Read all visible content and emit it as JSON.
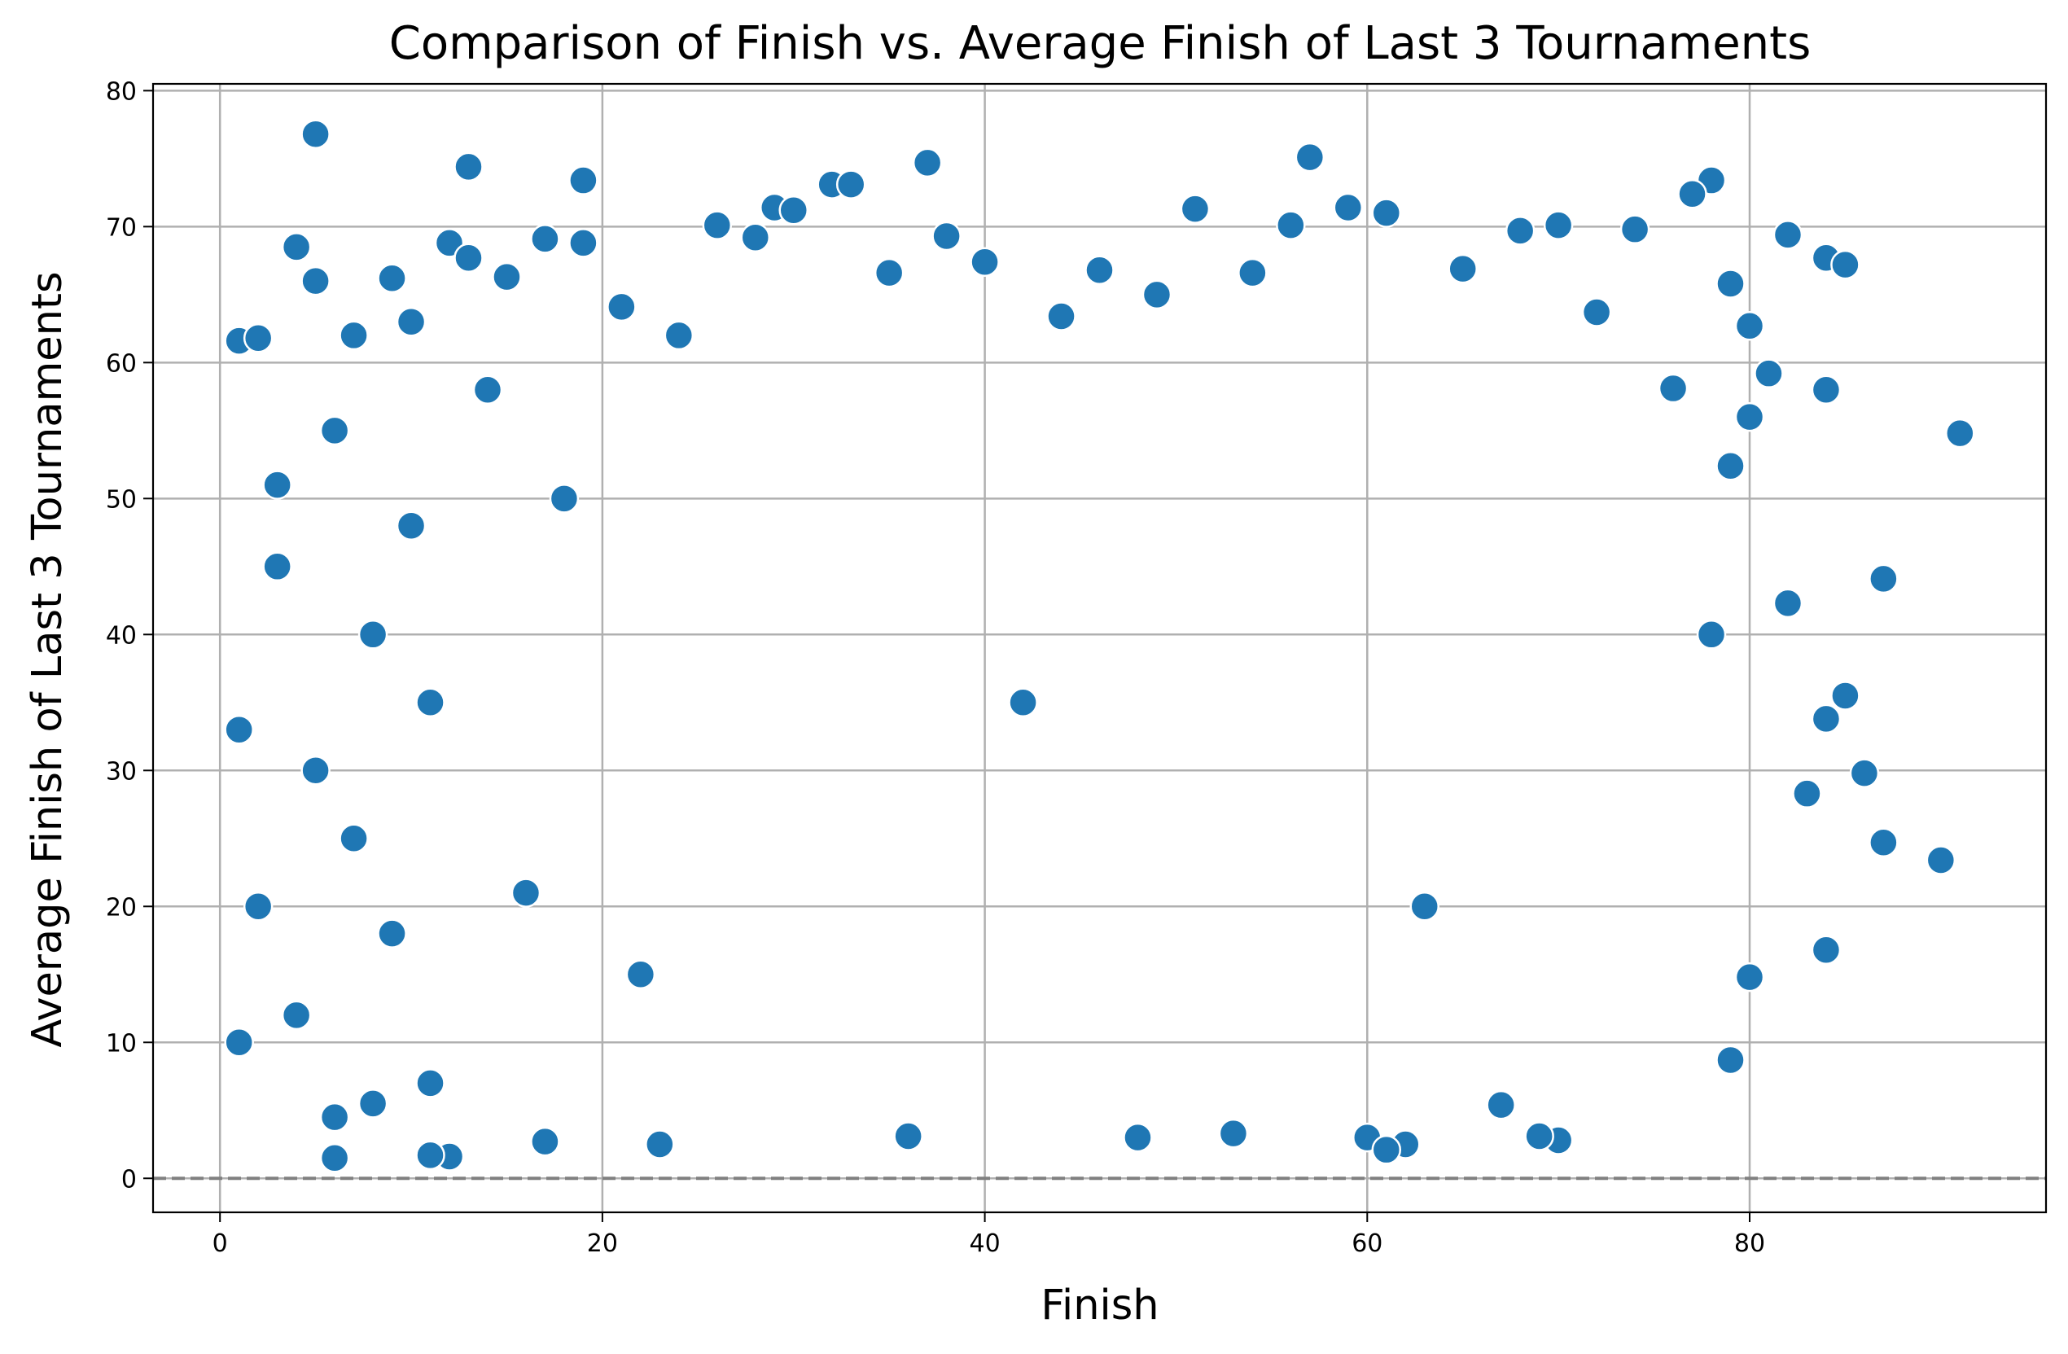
{
  "chart_data": {
    "type": "scatter",
    "title": "Comparison of Finish vs. Average Finish of Last 3 Tournaments",
    "xlabel": "Finish",
    "ylabel": "Average Finish of Last 3 Tournaments",
    "xlim": [
      -3.5,
      95.5
    ],
    "ylim": [
      -2.5,
      80.5
    ],
    "xticks": [
      0,
      20,
      40,
      60,
      80
    ],
    "yticks": [
      0,
      10,
      20,
      30,
      40,
      50,
      60,
      70,
      80
    ],
    "grid": true,
    "reference_line": {
      "y": 0,
      "style": "dashed",
      "color": "#808080"
    },
    "point_color": "#1f77b4",
    "point_edge_color": "#ffffff",
    "series": [
      {
        "x": [
          5,
          13,
          19,
          37,
          57,
          32,
          29,
          78,
          77,
          91,
          90,
          87,
          87,
          86,
          84,
          84,
          85,
          82,
          82,
          79,
          79,
          80,
          83,
          84,
          62,
          60,
          61,
          70,
          69,
          67,
          12,
          6,
          11,
          23,
          17,
          36,
          48,
          53,
          1,
          1,
          1,
          2,
          2,
          3,
          3,
          4,
          4,
          5,
          5,
          6,
          6,
          7,
          7,
          8,
          8,
          9,
          9,
          10,
          10,
          11,
          11,
          12,
          13,
          14,
          15,
          16,
          17,
          18,
          19,
          21,
          22,
          24,
          26,
          28,
          30,
          33,
          35,
          38,
          40,
          42,
          44,
          46,
          49,
          51,
          54,
          56,
          59,
          61,
          63,
          65,
          68,
          70,
          72,
          74,
          76,
          78,
          80,
          81,
          85,
          84,
          79,
          80
        ],
        "y": [
          76.8,
          74.4,
          73.4,
          74.7,
          75.1,
          73.1,
          71.4,
          73.4,
          72.4,
          54.8,
          23.4,
          44.1,
          24.7,
          29.8,
          16.8,
          67.7,
          67.2,
          69.4,
          42.3,
          8.7,
          65.8,
          14.8,
          28.3,
          33.8,
          2.5,
          3,
          2.1,
          2.8,
          3.1,
          5.4,
          1.6,
          1.5,
          1.7,
          2.5,
          2.7,
          3.1,
          3,
          3.3,
          61.6,
          10,
          33,
          61.8,
          20,
          45,
          51,
          12,
          68.5,
          66,
          30,
          55,
          4.5,
          62,
          25,
          40,
          5.5,
          66.2,
          18,
          63,
          48,
          35,
          7,
          68.8,
          67.7,
          58,
          66.3,
          21,
          69.1,
          50,
          68.8,
          64.1,
          15,
          62,
          70.1,
          69.2,
          71.2,
          73.1,
          66.6,
          69.3,
          67.4,
          35,
          63.4,
          66.8,
          65,
          71.3,
          66.6,
          70.1,
          71.4,
          71,
          20,
          66.9,
          69.7,
          70.1,
          63.7,
          69.8,
          58.1,
          40,
          62.7,
          59.2,
          35.5,
          58,
          52.4,
          56
        ]
      }
    ]
  }
}
